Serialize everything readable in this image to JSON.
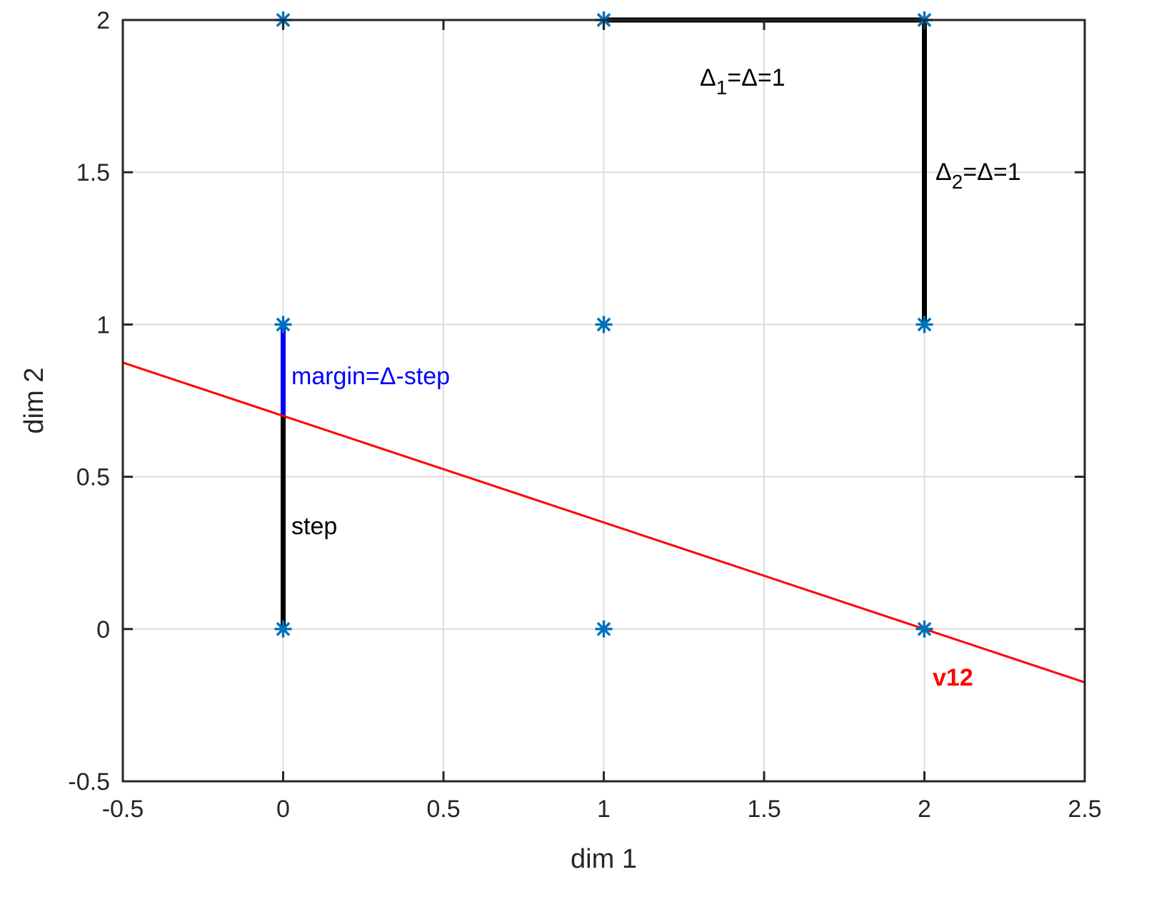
{
  "chart_data": {
    "type": "scatter",
    "xlabel": "dim 1",
    "ylabel": "dim 2",
    "xlim": [
      -0.5,
      2.5
    ],
    "ylim": [
      -0.5,
      2
    ],
    "xticks": [
      "-0.5",
      "0",
      "0.5",
      "1",
      "1.5",
      "2",
      "2.5"
    ],
    "yticks": [
      "-0.5",
      "0",
      "0.5",
      "1",
      "1.5",
      "2"
    ],
    "grid": true,
    "points": {
      "marker": "asterisk",
      "color": "#0072BD",
      "x": [
        0,
        1,
        2,
        0,
        1,
        2,
        0,
        1,
        2
      ],
      "y": [
        0,
        0,
        0,
        1,
        1,
        1,
        2,
        2,
        2
      ]
    },
    "segments": [
      {
        "name": "step",
        "color": "#000000",
        "x": [
          0,
          0
        ],
        "y": [
          0,
          0.7
        ]
      },
      {
        "name": "margin",
        "color": "#0000FF",
        "x": [
          0,
          0
        ],
        "y": [
          0.7,
          1
        ]
      },
      {
        "name": "delta1",
        "color": "#000000",
        "x": [
          1,
          2
        ],
        "y": [
          2,
          2
        ]
      },
      {
        "name": "delta2",
        "color": "#000000",
        "x": [
          2,
          2
        ],
        "y": [
          1,
          2
        ]
      }
    ],
    "line": {
      "name": "v12",
      "color": "#FF0000",
      "x": [
        -0.5,
        2.5
      ],
      "y": [
        0.875,
        -0.175
      ]
    },
    "annotations": {
      "step": {
        "text": "step",
        "color": "#000000"
      },
      "margin": {
        "text": "margin=Δ-step",
        "color": "#0000FF"
      },
      "v12": {
        "text": "v12",
        "color": "#FF0000"
      },
      "delta1": {
        "base": "Δ",
        "sub": "1",
        "rest": "=Δ=1",
        "color": "#000000"
      },
      "delta2": {
        "base": "Δ",
        "sub": "2",
        "rest": "=Δ=1",
        "color": "#000000"
      }
    }
  }
}
